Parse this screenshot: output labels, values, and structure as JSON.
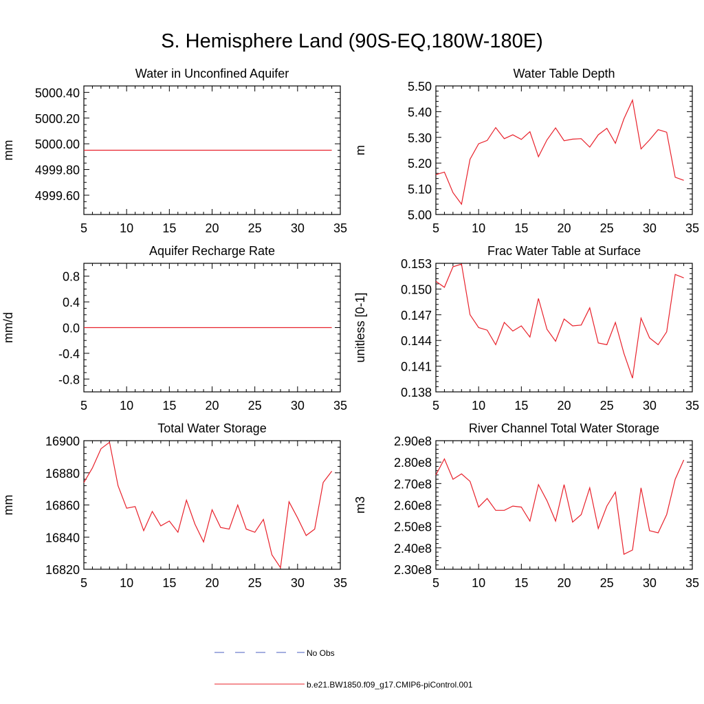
{
  "title": "S. Hemisphere Land (90S-EQ,180W-180E)",
  "colors": {
    "model": "#e8202a",
    "obs": "#4a5cc2",
    "axis": "#000000"
  },
  "legend": [
    {
      "label": "No Obs",
      "style": "dashed",
      "color": "#4a5cc2"
    },
    {
      "label": "b.e21.BW1850.f09_g17.CMIP6-piControl.001",
      "style": "solid",
      "color": "#e8202a"
    }
  ],
  "chart_data": [
    {
      "type": "line",
      "title": "Water in Unconfined Aquifer",
      "ylabel": "mm",
      "xlim": [
        5,
        35
      ],
      "ylim": [
        4999.45,
        5000.45
      ],
      "xticks": [
        5,
        10,
        15,
        20,
        25,
        30,
        35
      ],
      "xtick_labels": [
        "5",
        "10",
        "15",
        "20",
        "25",
        "30",
        "35"
      ],
      "yticks": [
        4999.6,
        4999.8,
        5000.0,
        5000.2,
        5000.4
      ],
      "ytick_labels": [
        "4999.60",
        "4999.80",
        "5000.00",
        "5000.20",
        "5000.40"
      ],
      "yminor": [
        4999.5,
        4999.55,
        4999.65,
        4999.7,
        4999.75,
        4999.85,
        4999.9,
        4999.95,
        5000.05,
        5000.1,
        5000.15,
        5000.25,
        5000.3,
        5000.35
      ],
      "series": [
        {
          "name": "b.e21.BW1850.f09_g17.CMIP6-piControl.001",
          "x": [
            5,
            34
          ],
          "values": [
            4999.95,
            4999.95
          ]
        }
      ]
    },
    {
      "type": "line",
      "title": "Water Table Depth",
      "ylabel": "m",
      "xlim": [
        5,
        35
      ],
      "ylim": [
        5.0,
        5.5
      ],
      "xticks": [
        5,
        10,
        15,
        20,
        25,
        30,
        35
      ],
      "xtick_labels": [
        "5",
        "10",
        "15",
        "20",
        "25",
        "30",
        "35"
      ],
      "yticks": [
        5.0,
        5.1,
        5.2,
        5.3,
        5.4,
        5.5
      ],
      "ytick_labels": [
        "5.00",
        "5.10",
        "5.20",
        "5.30",
        "5.40",
        "5.50"
      ],
      "yminor": [
        5.02,
        5.04,
        5.06,
        5.08,
        5.12,
        5.14,
        5.16,
        5.18,
        5.22,
        5.24,
        5.26,
        5.28,
        5.32,
        5.34,
        5.36,
        5.38,
        5.42,
        5.44,
        5.46,
        5.48
      ],
      "series": [
        {
          "name": "b.e21.BW1850.f09_g17.CMIP6-piControl.001",
          "x": [
            5,
            6,
            7,
            8,
            9,
            10,
            11,
            12,
            13,
            14,
            15,
            16,
            17,
            18,
            19,
            20,
            21,
            22,
            23,
            24,
            25,
            26,
            27,
            28,
            29,
            30,
            31,
            32,
            33,
            34
          ],
          "values": [
            5.155,
            5.165,
            5.085,
            5.04,
            5.215,
            5.275,
            5.288,
            5.338,
            5.295,
            5.31,
            5.292,
            5.322,
            5.225,
            5.29,
            5.337,
            5.287,
            5.293,
            5.295,
            5.262,
            5.31,
            5.335,
            5.277,
            5.372,
            5.445,
            5.255,
            5.29,
            5.33,
            5.32,
            5.145,
            5.133
          ]
        }
      ]
    },
    {
      "type": "line",
      "title": "Aquifer Recharge Rate",
      "ylabel": "mm/d",
      "xlim": [
        5,
        35
      ],
      "ylim": [
        -1.0,
        1.0
      ],
      "xticks": [
        5,
        10,
        15,
        20,
        25,
        30,
        35
      ],
      "xtick_labels": [
        "5",
        "10",
        "15",
        "20",
        "25",
        "30",
        "35"
      ],
      "yticks": [
        -0.8,
        -0.4,
        0.0,
        0.4,
        0.8
      ],
      "ytick_labels": [
        "-0.8",
        "-0.4",
        "0.0",
        "0.4",
        "0.8"
      ],
      "yminor": [
        -0.9,
        -0.7,
        -0.6,
        -0.5,
        -0.3,
        -0.2,
        -0.1,
        0.1,
        0.2,
        0.3,
        0.5,
        0.6,
        0.7,
        0.9
      ],
      "series": [
        {
          "name": "b.e21.BW1850.f09_g17.CMIP6-piControl.001",
          "x": [
            5,
            34
          ],
          "values": [
            0.0,
            0.0
          ]
        }
      ]
    },
    {
      "type": "line",
      "title": "Frac Water Table at Surface",
      "ylabel": "unitless [0-1]",
      "xlim": [
        5,
        35
      ],
      "ylim": [
        0.138,
        0.153
      ],
      "xticks": [
        5,
        10,
        15,
        20,
        25,
        30,
        35
      ],
      "xtick_labels": [
        "5",
        "10",
        "15",
        "20",
        "25",
        "30",
        "35"
      ],
      "yticks": [
        0.138,
        0.141,
        0.144,
        0.147,
        0.15,
        0.153
      ],
      "ytick_labels": [
        "0.138",
        "0.141",
        "0.144",
        "0.147",
        "0.150",
        "0.153"
      ],
      "yminor": [
        0.1386,
        0.1392,
        0.1398,
        0.1404,
        0.1416,
        0.1422,
        0.1428,
        0.1434,
        0.1446,
        0.1452,
        0.1458,
        0.1464,
        0.1476,
        0.1482,
        0.1488,
        0.1494,
        0.1506,
        0.1512,
        0.1518,
        0.1524
      ],
      "series": [
        {
          "name": "b.e21.BW1850.f09_g17.CMIP6-piControl.001",
          "x": [
            5,
            6,
            7,
            8,
            9,
            10,
            11,
            12,
            13,
            14,
            15,
            16,
            17,
            18,
            19,
            20,
            21,
            22,
            23,
            24,
            25,
            26,
            27,
            28,
            29,
            30,
            31,
            32,
            33,
            34
          ],
          "values": [
            0.1509,
            0.1502,
            0.1526,
            0.1529,
            0.147,
            0.1455,
            0.1452,
            0.1435,
            0.1461,
            0.1451,
            0.1457,
            0.1444,
            0.1489,
            0.1453,
            0.1439,
            0.1465,
            0.1457,
            0.1458,
            0.1478,
            0.1437,
            0.1435,
            0.1461,
            0.1425,
            0.1396,
            0.1466,
            0.1443,
            0.1435,
            0.145,
            0.1517,
            0.1513
          ]
        }
      ]
    },
    {
      "type": "line",
      "title": "Total Water Storage",
      "ylabel": "mm",
      "xlim": [
        5,
        35
      ],
      "ylim": [
        16820,
        16900
      ],
      "xticks": [
        5,
        10,
        15,
        20,
        25,
        30,
        35
      ],
      "xtick_labels": [
        "5",
        "10",
        "15",
        "20",
        "25",
        "30",
        "35"
      ],
      "yticks": [
        16820,
        16840,
        16860,
        16880,
        16900
      ],
      "ytick_labels": [
        "16820",
        "16840",
        "16860",
        "16880",
        "16900"
      ],
      "yminor": [
        16824,
        16828,
        16832,
        16836,
        16844,
        16848,
        16852,
        16856,
        16864,
        16868,
        16872,
        16876,
        16884,
        16888,
        16892,
        16896
      ],
      "series": [
        {
          "name": "b.e21.BW1850.f09_g17.CMIP6-piControl.001",
          "x": [
            5,
            6,
            7,
            8,
            9,
            10,
            11,
            12,
            13,
            14,
            15,
            16,
            17,
            18,
            19,
            20,
            21,
            22,
            23,
            24,
            25,
            26,
            27,
            28,
            29,
            30,
            31,
            32,
            33,
            34
          ],
          "values": [
            16874,
            16883,
            16895,
            16899,
            16872,
            16858,
            16859,
            16844,
            16856,
            16847,
            16850,
            16843,
            16863,
            16848,
            16837,
            16857,
            16846,
            16845,
            16860,
            16845,
            16843,
            16851,
            16829,
            16821,
            16862,
            16852,
            16841,
            16845,
            16874,
            16881
          ]
        }
      ]
    },
    {
      "type": "line",
      "title": "River Channel Total Water Storage",
      "ylabel": "m3",
      "xlim": [
        5,
        35
      ],
      "ylim": [
        230000000,
        290000000
      ],
      "xticks": [
        5,
        10,
        15,
        20,
        25,
        30,
        35
      ],
      "xtick_labels": [
        "5",
        "10",
        "15",
        "20",
        "25",
        "30",
        "35"
      ],
      "yticks": [
        230000000,
        240000000,
        250000000,
        260000000,
        270000000,
        280000000,
        290000000
      ],
      "ytick_labels": [
        "2.30e8",
        "2.40e8",
        "2.50e8",
        "2.60e8",
        "2.70e8",
        "2.80e8",
        "2.90e8"
      ],
      "yminor": [
        232000000,
        234000000,
        236000000,
        238000000,
        242000000,
        244000000,
        246000000,
        248000000,
        252000000,
        254000000,
        256000000,
        258000000,
        262000000,
        264000000,
        266000000,
        268000000,
        272000000,
        274000000,
        276000000,
        278000000,
        282000000,
        284000000,
        286000000,
        288000000
      ],
      "series": [
        {
          "name": "b.e21.BW1850.f09_g17.CMIP6-piControl.001",
          "x": [
            5,
            6,
            7,
            8,
            9,
            10,
            11,
            12,
            13,
            14,
            15,
            16,
            17,
            18,
            19,
            20,
            21,
            22,
            23,
            24,
            25,
            26,
            27,
            28,
            29,
            30,
            31,
            32,
            33,
            34
          ],
          "values": [
            274000000,
            281500000,
            272000000,
            274500000,
            271000000,
            259000000,
            263000000,
            257500000,
            257500000,
            259500000,
            259000000,
            252500000,
            269500000,
            262000000,
            252500000,
            269500000,
            252000000,
            255500000,
            268000000,
            249000000,
            259500000,
            266000000,
            237000000,
            239000000,
            268000000,
            248000000,
            247000000,
            255500000,
            272000000,
            281000000
          ]
        }
      ]
    }
  ]
}
